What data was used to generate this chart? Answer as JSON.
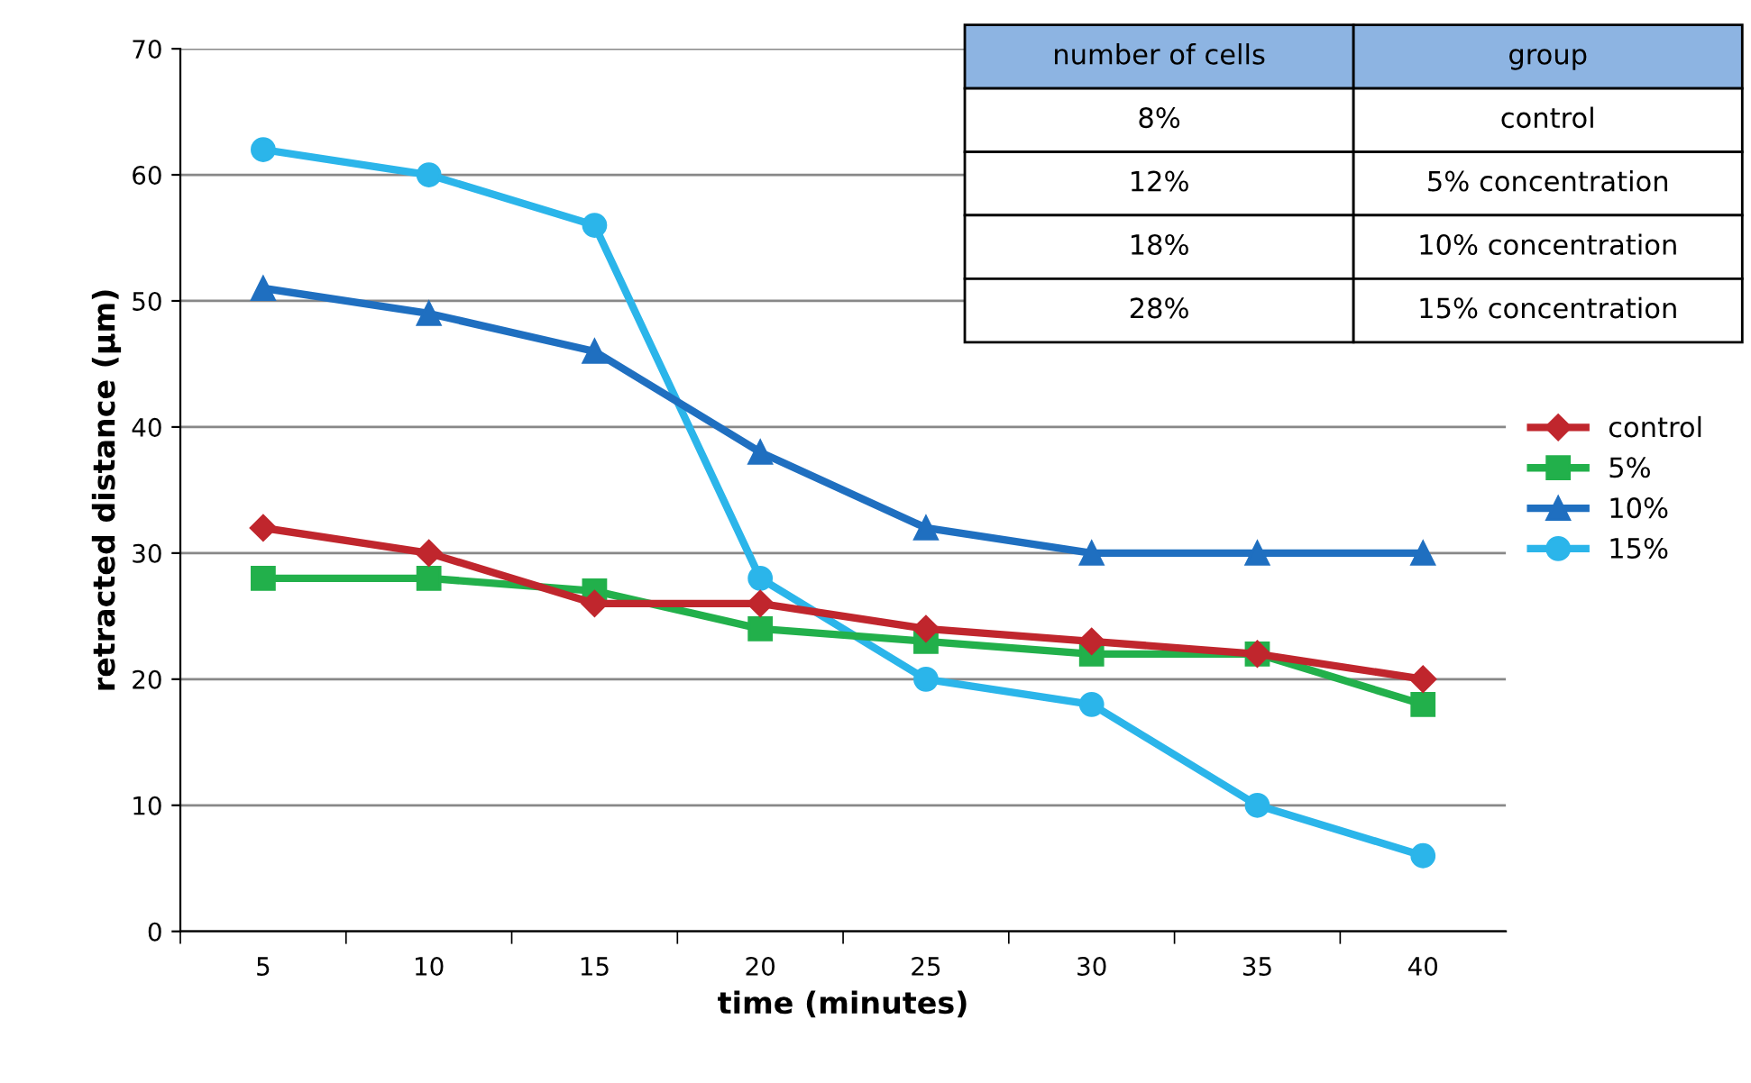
{
  "chart_data": {
    "type": "line",
    "xlabel": "time (minutes)",
    "ylabel": "retracted distance (µm)",
    "categories": [
      "5",
      "10",
      "15",
      "20",
      "25",
      "30",
      "35",
      "40"
    ],
    "series": [
      {
        "name": "control",
        "color": "#c0262d",
        "marker": "diamond",
        "values": [
          32,
          30,
          26,
          26,
          24,
          23,
          22,
          20
        ]
      },
      {
        "name": "5%",
        "color": "#22b04b",
        "marker": "square",
        "values": [
          28,
          28,
          27,
          24,
          23,
          22,
          22,
          18
        ]
      },
      {
        "name": "10%",
        "color": "#1f6fc0",
        "marker": "triangle",
        "values": [
          51,
          49,
          46,
          38,
          32,
          30,
          30,
          30
        ]
      },
      {
        "name": "15%",
        "color": "#2bb5ea",
        "marker": "circle",
        "values": [
          62,
          60,
          56,
          28,
          20,
          18,
          10,
          6
        ]
      }
    ],
    "ylim": [
      0,
      70
    ],
    "yticks": [
      0,
      10,
      20,
      30,
      40,
      50,
      60,
      70
    ],
    "grid": "y",
    "legend": "right",
    "line_style": "solid",
    "annotations": [
      "number of cells",
      "group",
      "8%",
      "control",
      "12%",
      "5% concentration",
      "18%",
      "10% concentration",
      "28%",
      "15% concentration"
    ]
  }
}
